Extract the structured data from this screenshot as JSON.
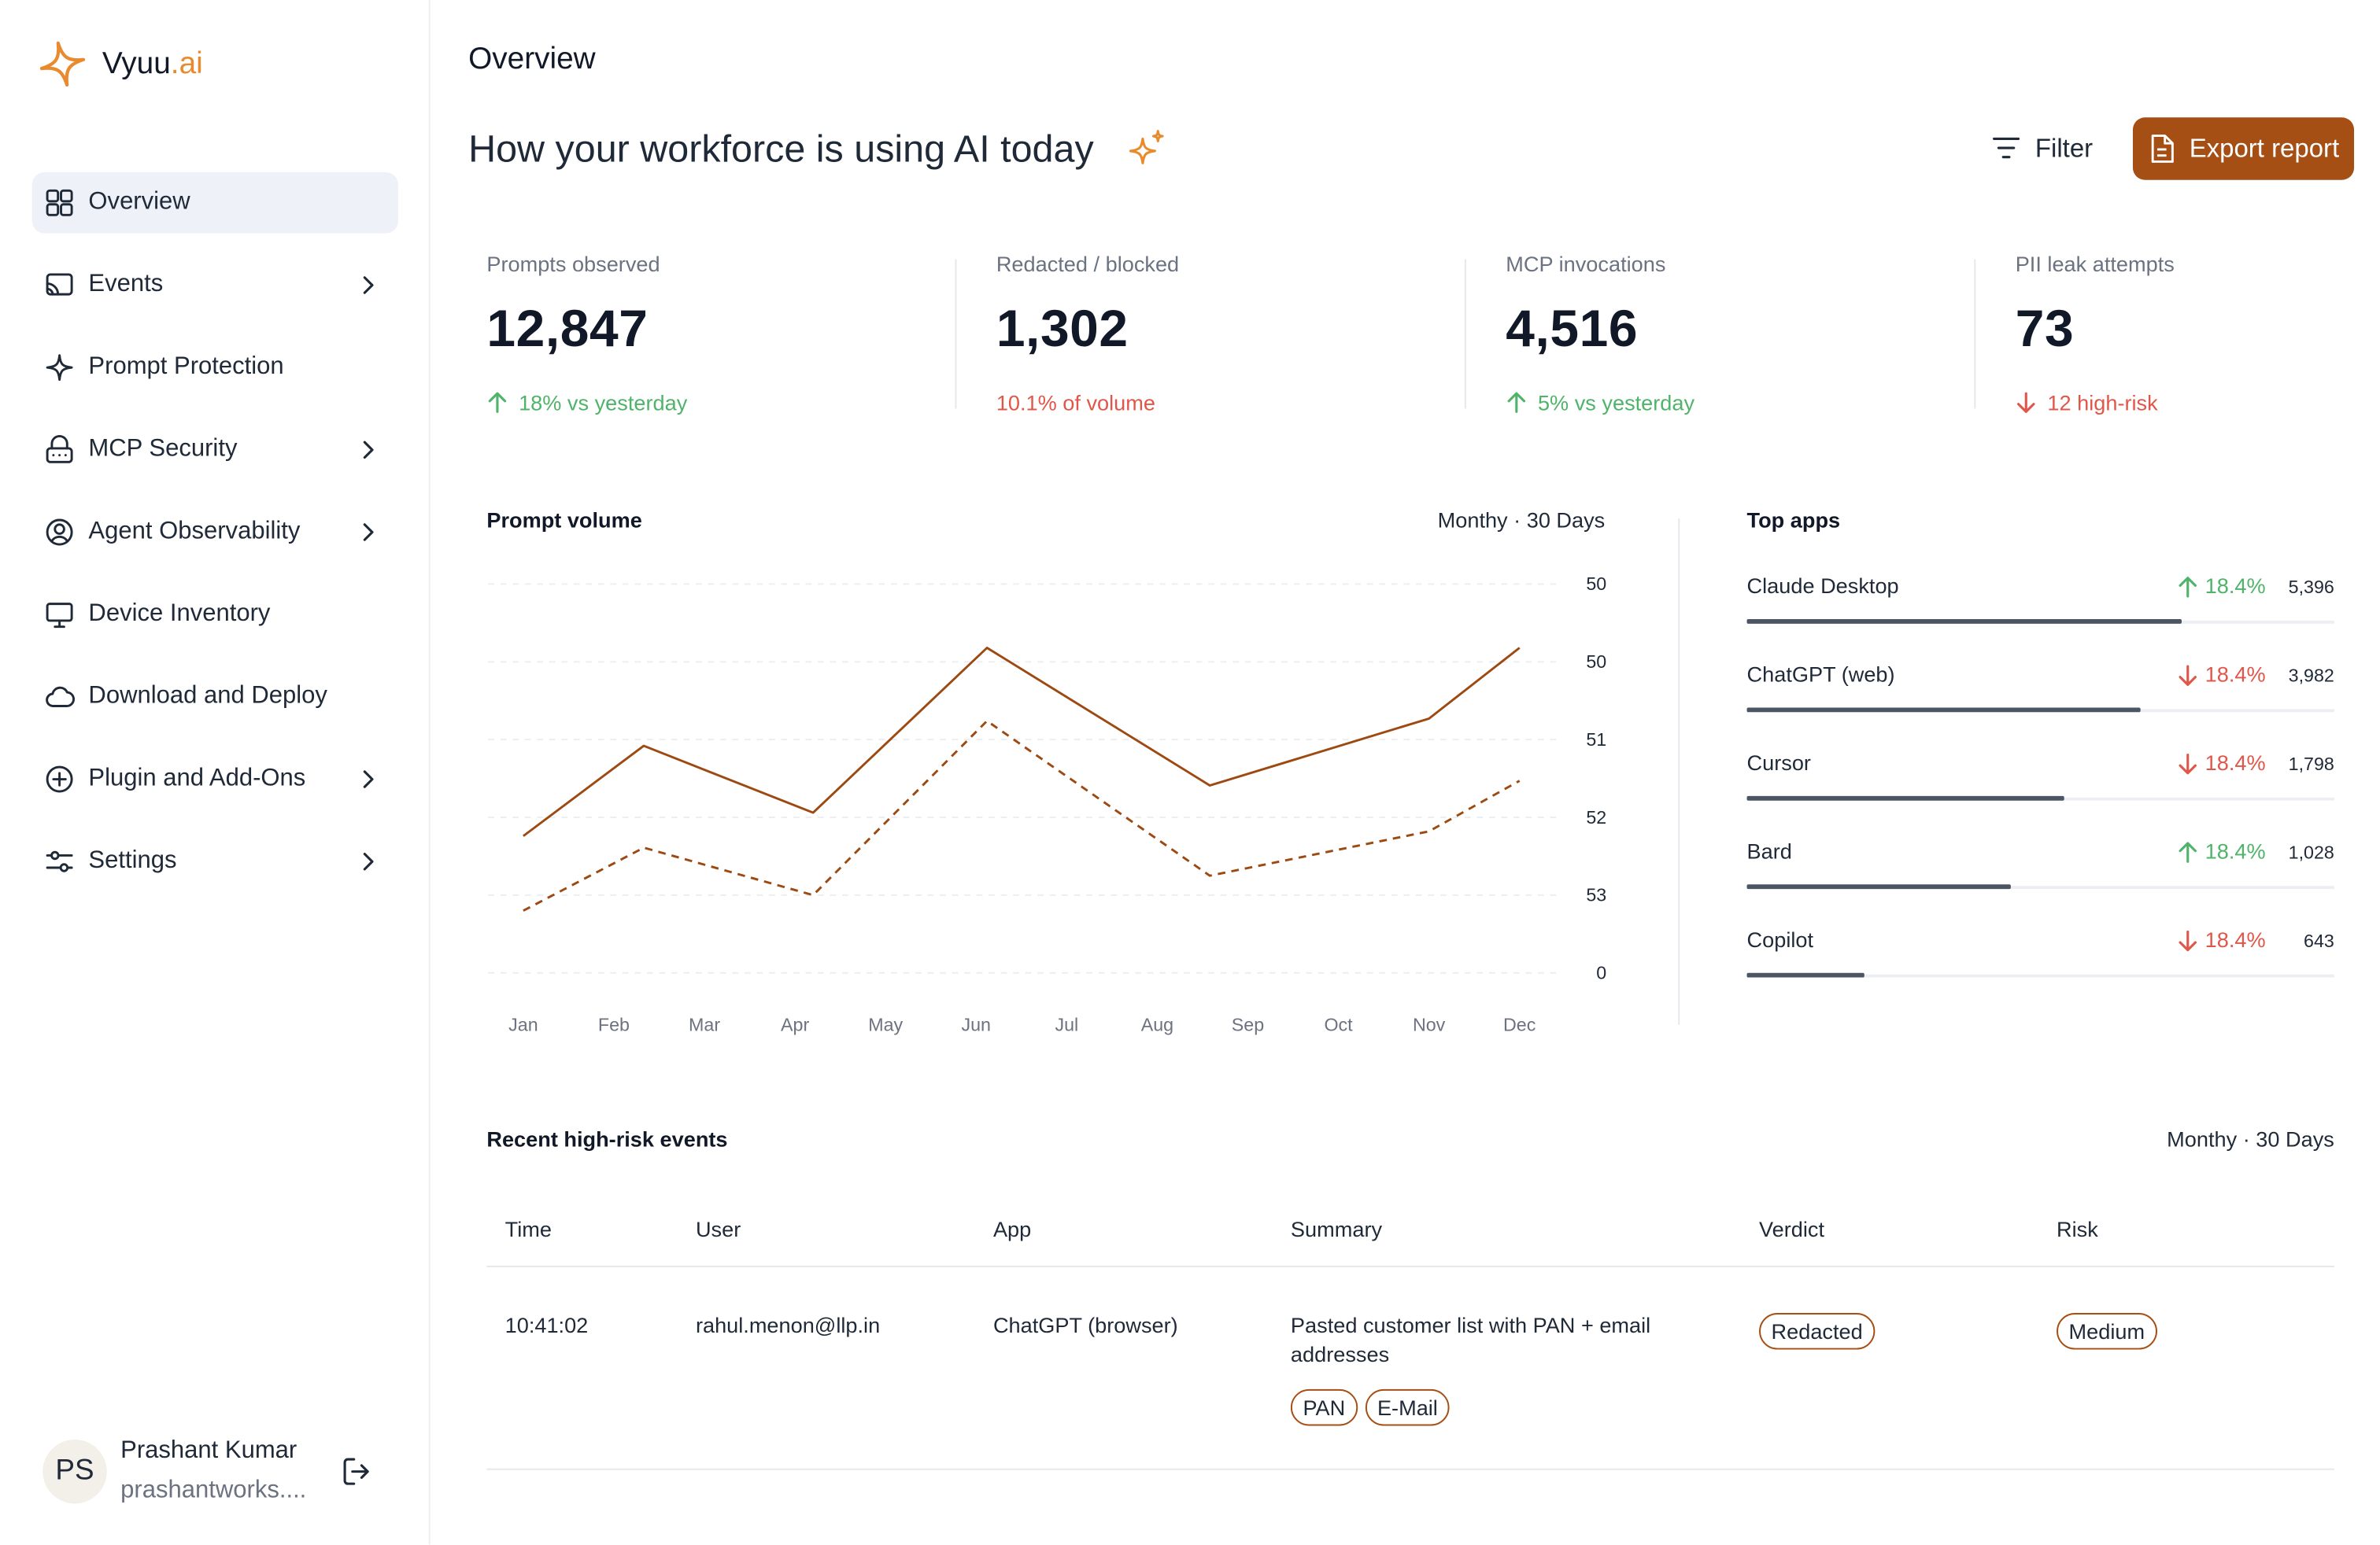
{
  "sidebar": {
    "logo": {
      "name": "Vyuu",
      "suffix": ".ai"
    },
    "nav": [
      {
        "label": "Overview",
        "active": true,
        "submenu": false
      },
      {
        "label": "Events",
        "active": false,
        "submenu": true
      },
      {
        "label": "Prompt Protection",
        "active": false,
        "submenu": false
      },
      {
        "label": "MCP Security",
        "active": false,
        "submenu": true
      },
      {
        "label": "Agent Observability",
        "active": false,
        "submenu": true
      },
      {
        "label": "Device Inventory",
        "active": false,
        "submenu": false
      },
      {
        "label": "Download and Deploy",
        "active": false,
        "submenu": false
      },
      {
        "label": "Plugin and Add-Ons",
        "active": false,
        "submenu": true
      },
      {
        "label": "Settings",
        "active": false,
        "submenu": true
      }
    ],
    "user": {
      "initials": "PS",
      "name": "Prashant Kumar",
      "email": "prashantworks...."
    }
  },
  "header": {
    "page_title": "Overview",
    "headline": "How your workforce is using AI today",
    "filter": "Filter",
    "export": "Export report"
  },
  "kpis": [
    {
      "label": "Prompts observed",
      "value": "12,847",
      "delta": "18% vs yesterday",
      "trend": "up",
      "arrow": true
    },
    {
      "label": "Redacted / blocked",
      "value": "1,302",
      "delta": "10.1% of volume",
      "trend": "down",
      "arrow": false
    },
    {
      "label": "MCP invocations",
      "value": "4,516",
      "delta": "5% vs yesterday",
      "trend": "up",
      "arrow": true
    },
    {
      "label": "PII leak attempts",
      "value": "73",
      "delta": "12 high-risk",
      "trend": "down",
      "arrow": true
    }
  ],
  "chart_data": {
    "type": "line",
    "title": "Prompt volume",
    "period": "Monthy · 30 Days",
    "x": [
      0,
      1.33,
      3.2,
      5.12,
      7.58,
      10,
      11
    ],
    "series": [
      {
        "color": "#9c4a12",
        "dashed": false,
        "values": [
          1.76,
          2.92,
          2.06,
          4.18,
          2.41,
          3.27,
          4.18
        ]
      },
      {
        "color": "#9c4a12",
        "dashed": true,
        "values": [
          0.8,
          1.61,
          1.0,
          3.24,
          1.25,
          1.82,
          2.47
        ]
      }
    ],
    "xlim": [
      0,
      11
    ],
    "xticks": [
      {
        "value": 0,
        "label": "Jan"
      },
      {
        "value": 1,
        "label": "Feb"
      },
      {
        "value": 2,
        "label": "Mar"
      },
      {
        "value": 3,
        "label": "Apr"
      },
      {
        "value": 4,
        "label": "May"
      },
      {
        "value": 5,
        "label": "Jun"
      },
      {
        "value": 6,
        "label": "Jul"
      },
      {
        "value": 7,
        "label": "Aug"
      },
      {
        "value": 8,
        "label": "Sep"
      },
      {
        "value": 9,
        "label": "Oct"
      },
      {
        "value": 10,
        "label": "Nov"
      },
      {
        "value": 11,
        "label": "Dec"
      }
    ],
    "ylim": [
      0,
      5
    ],
    "yticks": [
      {
        "value": 5,
        "label": "50"
      },
      {
        "value": 4,
        "label": "50"
      },
      {
        "value": 3,
        "label": "51"
      },
      {
        "value": 2,
        "label": "52"
      },
      {
        "value": 1,
        "label": "53"
      },
      {
        "value": 0,
        "label": "0"
      }
    ],
    "grid": true
  },
  "top_apps": {
    "title": "Top apps",
    "xlim": [
      0,
      100
    ],
    "rows": [
      {
        "name": "Claude Desktop",
        "trend": "up",
        "change": "18.4%",
        "count": "5,396",
        "share": 74
      },
      {
        "name": "ChatGPT (web)",
        "trend": "down",
        "change": "18.4%",
        "count": "3,982",
        "share": 67
      },
      {
        "name": "Cursor",
        "trend": "down",
        "change": "18.4%",
        "count": "1,798",
        "share": 54
      },
      {
        "name": "Bard",
        "trend": "up",
        "change": "18.4%",
        "count": "1,028",
        "share": 45
      },
      {
        "name": "Copilot",
        "trend": "down",
        "change": "18.4%",
        "count": "643",
        "share": 20
      }
    ]
  },
  "events": {
    "title": "Recent high-risk events",
    "period": "Monthy · 30 Days",
    "columns": [
      "Time",
      "User",
      "App",
      "Summary",
      "Verdict",
      "Risk"
    ],
    "rows": [
      {
        "time": "10:41:02",
        "user": "rahul.menon@llp.in",
        "app": "ChatGPT (browser)",
        "summary": "Pasted customer list with PAN + email addresses",
        "tags": [
          "PAN",
          "E-Mail"
        ],
        "verdict": "Redacted",
        "risk": "Medium"
      }
    ]
  }
}
